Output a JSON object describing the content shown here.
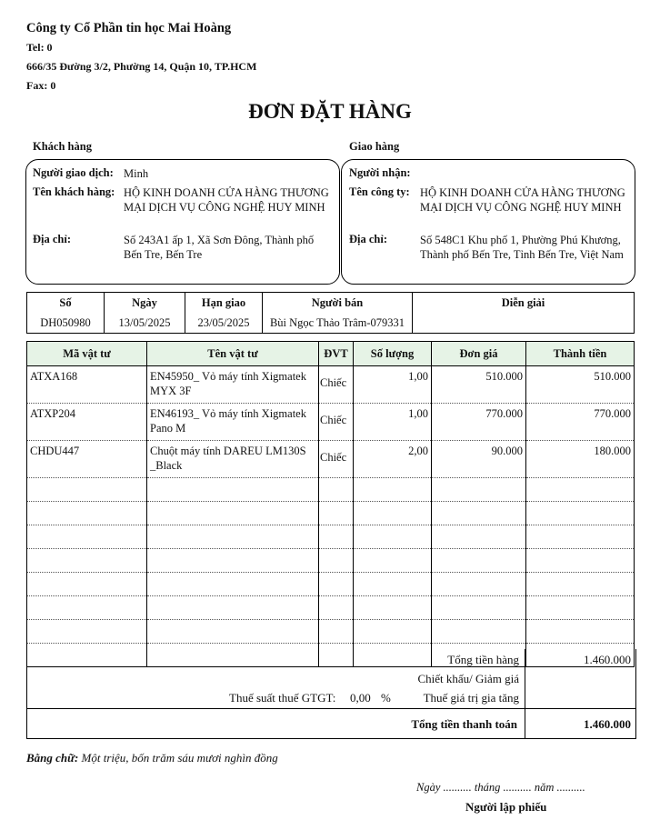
{
  "company": {
    "name": "Công ty Cổ Phần tin học Mai Hoàng",
    "tel": "Tel:  0",
    "address": "666/35 Đường 3/2, Phường 14, Quận 10, TP.HCM",
    "fax": "Fax: 0"
  },
  "title": "ĐƠN ĐẶT HÀNG",
  "customer": {
    "section": "Khách hàng",
    "contact_label": "Người giao dịch:",
    "contact": "Minh",
    "name_label": "Tên khách hàng:",
    "name": "HỘ KINH DOANH CỬA HÀNG THƯƠNG MẠI DỊCH VỤ CÔNG NGHỆ HUY MINH",
    "address_label": "Địa chỉ:",
    "address": "Số 243A1 ấp 1, Xã Sơn Đông, Thành phố Bến Tre, Bến Tre"
  },
  "delivery": {
    "section": "Giao hàng",
    "receiver_label": "Người nhận:",
    "receiver": "",
    "company_label": "Tên công ty:",
    "company": "HỘ KINH DOANH CỬA HÀNG THƯƠNG MẠI DỊCH VỤ CÔNG NGHỆ HUY MINH",
    "address_label": "Địa chỉ:",
    "address": "Số 548C1 Khu phố 1, Phường Phú Khương, Thành phố Bến Tre, Tỉnh Bến Tre, Việt Nam"
  },
  "order": {
    "headers": [
      "Số",
      "Ngày",
      "Hạn giao",
      "Người bán",
      "Diễn giải"
    ],
    "values": [
      "DH050980",
      "13/05/2025",
      "23/05/2025",
      "Bùi Ngọc Thảo Trâm-079331",
      ""
    ]
  },
  "items": {
    "headers": [
      "Mã vật tư",
      "Tên vật tư",
      "ĐVT",
      "Số lượng",
      "Đơn giá",
      "Thành tiền"
    ],
    "rows": [
      [
        "ATXA168",
        "EN45950_ Vỏ máy tính Xigmatek MYX 3F",
        "Chiếc",
        "1,00",
        "510.000",
        "510.000"
      ],
      [
        "ATXP204",
        "EN46193_ Vỏ máy tính Xigmatek Pano M",
        "Chiếc",
        "1,00",
        "770.000",
        "770.000"
      ],
      [
        "CHDU447",
        "Chuột máy tính DAREU LM130S _Black",
        "Chiếc",
        "2,00",
        "90.000",
        "180.000"
      ]
    ],
    "header_color": "#e6f3e6"
  },
  "summary": {
    "subtotal_label": "Tổng tiền hàng",
    "subtotal": "1.460.000",
    "discount_label": "Chiết khấu/ Giảm giá",
    "vat_rate_label": "Thuế suất thuế GTGT:",
    "vat_rate": "0,00",
    "vat_unit": "%",
    "vat_label": "Thuế giá trị gia tăng",
    "total_label": "Tổng tiền thanh toán",
    "total": "1.460.000"
  },
  "words_label": "Bằng chữ:",
  "words": "Một triệu, bốn trăm sáu mươi nghìn đồng",
  "date_line": "Ngày .......... tháng .......... năm ..........",
  "signer": "Người lập phiếu"
}
